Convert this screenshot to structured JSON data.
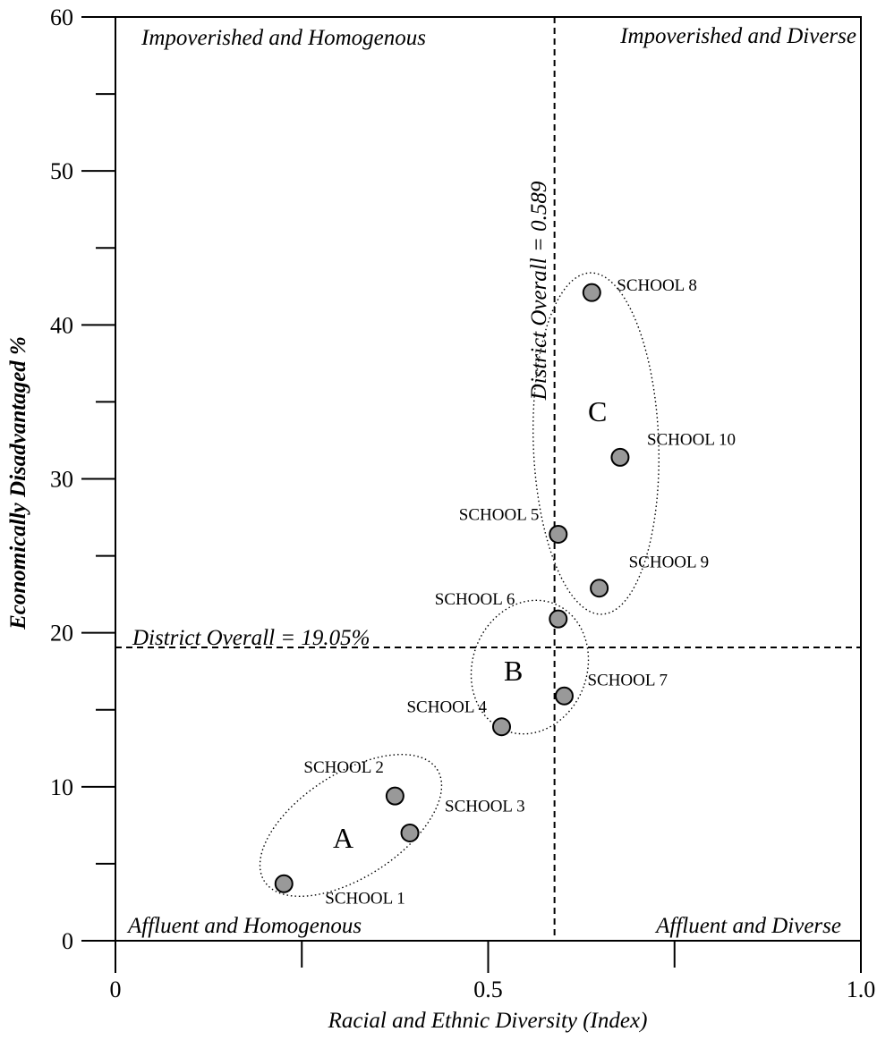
{
  "chart_data": {
    "type": "scatter",
    "title": "",
    "xlabel": "Racial and Ethnic Diversity (Index)",
    "ylabel": "Economically Disadvantaged %",
    "xlim": [
      0,
      1.0
    ],
    "ylim": [
      0,
      60
    ],
    "x_ticks": [
      {
        "value": 0,
        "label": "0"
      },
      {
        "value": 0.5,
        "label": "0.5"
      },
      {
        "value": 1.0,
        "label": "1.0"
      }
    ],
    "x_minor_ticks": [
      0.25,
      0.75
    ],
    "y_ticks": [
      {
        "value": 0,
        "label": "0"
      },
      {
        "value": 10,
        "label": "10"
      },
      {
        "value": 20,
        "label": "20"
      },
      {
        "value": 30,
        "label": "30"
      },
      {
        "value": 40,
        "label": "40"
      },
      {
        "value": 50,
        "label": "50"
      },
      {
        "value": 60,
        "label": "60"
      }
    ],
    "y_minor_ticks": [
      5,
      15,
      25,
      35,
      45,
      55
    ],
    "grid": false,
    "point_color": "#999999",
    "points": [
      {
        "label": "SCHOOL 1",
        "x": 0.226,
        "y": 3.7
      },
      {
        "label": "SCHOOL 2",
        "x": 0.375,
        "y": 9.4
      },
      {
        "label": "SCHOOL 3",
        "x": 0.395,
        "y": 7.0
      },
      {
        "label": "SCHOOL 4",
        "x": 0.518,
        "y": 13.9
      },
      {
        "label": "SCHOOL 5",
        "x": 0.594,
        "y": 26.4
      },
      {
        "label": "SCHOOL 6",
        "x": 0.594,
        "y": 20.9
      },
      {
        "label": "SCHOOL 7",
        "x": 0.602,
        "y": 15.9
      },
      {
        "label": "SCHOOL 8",
        "x": 0.639,
        "y": 42.1
      },
      {
        "label": "SCHOOL 9",
        "x": 0.649,
        "y": 22.9
      },
      {
        "label": "SCHOOL 10",
        "x": 0.677,
        "y": 31.4
      }
    ],
    "reference_lines": [
      {
        "axis": "x",
        "value": 0.589,
        "label": "District Overall = 0.589"
      },
      {
        "axis": "y",
        "value": 19.05,
        "label": "District Overall = 19.05%"
      }
    ],
    "quadrant_labels": {
      "top_left": "Impoverished and Homogenous",
      "top_right": "Impoverished and Diverse",
      "bottom_left": "Affluent and Homogenous",
      "bottom_right": "Affluent and Diverse"
    },
    "groups": [
      {
        "label": "A",
        "members": [
          "SCHOOL 1",
          "SCHOOL 2",
          "SCHOOL 3"
        ]
      },
      {
        "label": "B",
        "members": [
          "SCHOOL 4",
          "SCHOOL 6",
          "SCHOOL 7"
        ]
      },
      {
        "label": "C",
        "members": [
          "SCHOOL 5",
          "SCHOOL 8",
          "SCHOOL 9",
          "SCHOOL 10"
        ]
      }
    ]
  }
}
